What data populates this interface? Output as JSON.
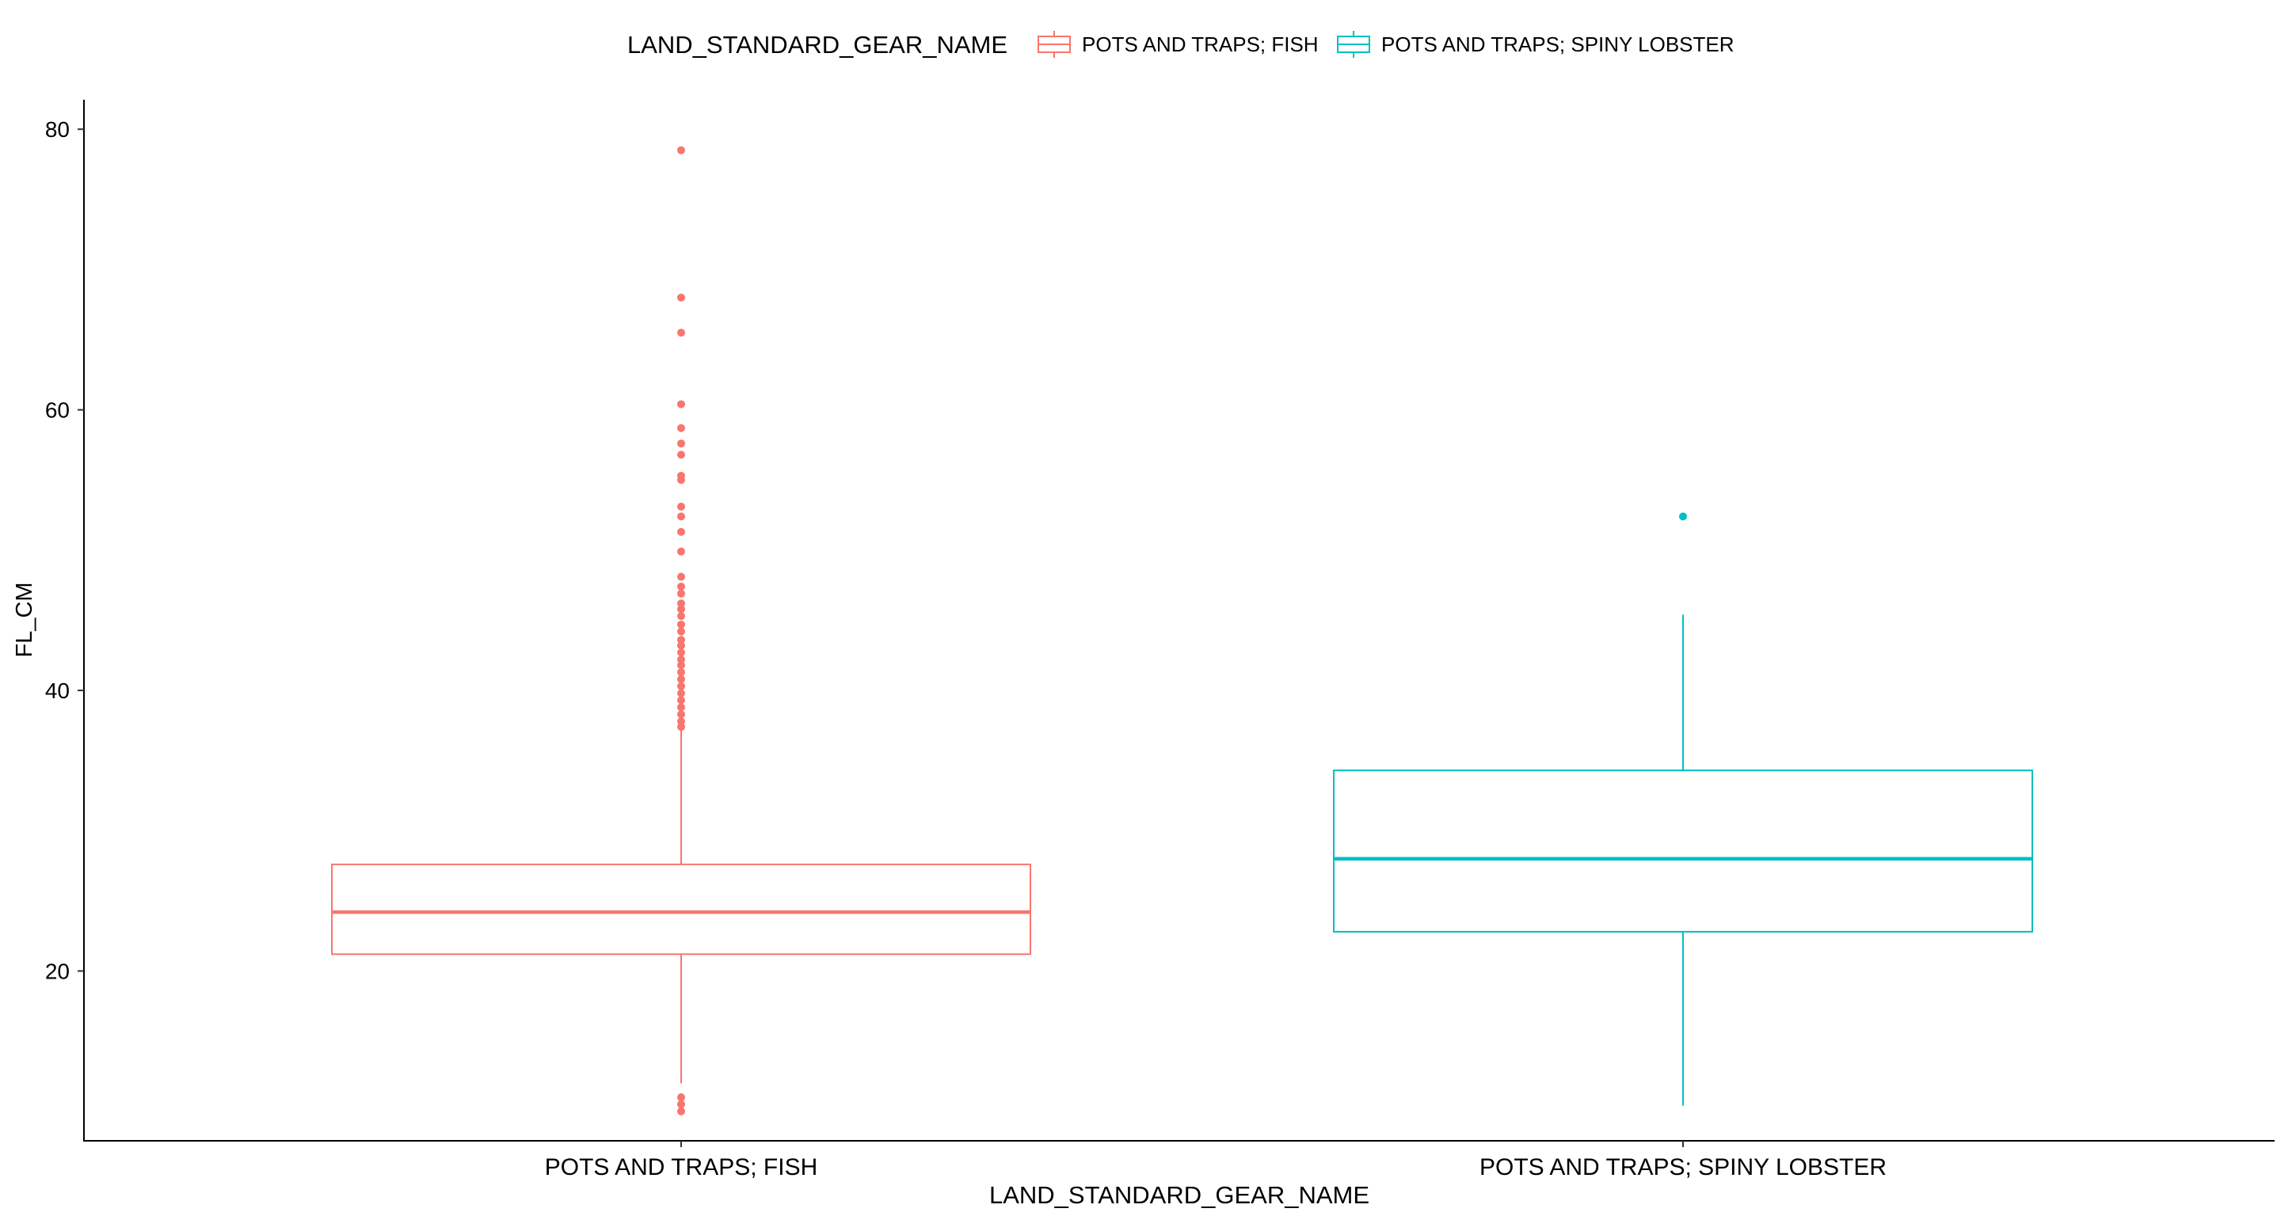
{
  "chart_data": {
    "type": "boxplot",
    "title": "",
    "xlabel": "LAND_STANDARD_GEAR_NAME",
    "ylabel": "FL_CM",
    "ylim": [
      7.9,
      82.1
    ],
    "yticks": [
      20,
      40,
      60,
      80
    ],
    "grid": false,
    "legend": {
      "title": "LAND_STANDARD_GEAR_NAME",
      "placement": "top"
    },
    "categories": [
      "POTS AND TRAPS; FISH",
      "POTS AND TRAPS; SPINY LOBSTER"
    ],
    "series": [
      {
        "name": "POTS AND TRAPS; FISH",
        "color": "#F8766D",
        "whisker_low": 12,
        "q1": 21.2,
        "median": 24.2,
        "q3": 27.6,
        "whisker_high": 37.4,
        "outliers": [
          78.5,
          68.0,
          65.5,
          60.4,
          58.7,
          57.6,
          56.8,
          55.3,
          55.0,
          53.1,
          52.4,
          51.3,
          49.9,
          48.1,
          47.4,
          46.9,
          46.2,
          45.8,
          45.3,
          44.7,
          44.2,
          43.6,
          43.2,
          42.7,
          42.2,
          41.8,
          41.3,
          40.8,
          40.3,
          39.8,
          39.3,
          38.8,
          38.3,
          37.8,
          37.4,
          11.0,
          10.5,
          10.0
        ]
      },
      {
        "name": "POTS AND TRAPS; SPINY LOBSTER",
        "color": "#00BFC4",
        "whisker_low": 10.4,
        "q1": 22.8,
        "median": 28.0,
        "q3": 34.3,
        "whisker_high": 45.4,
        "outliers": [
          52.4
        ]
      }
    ]
  }
}
